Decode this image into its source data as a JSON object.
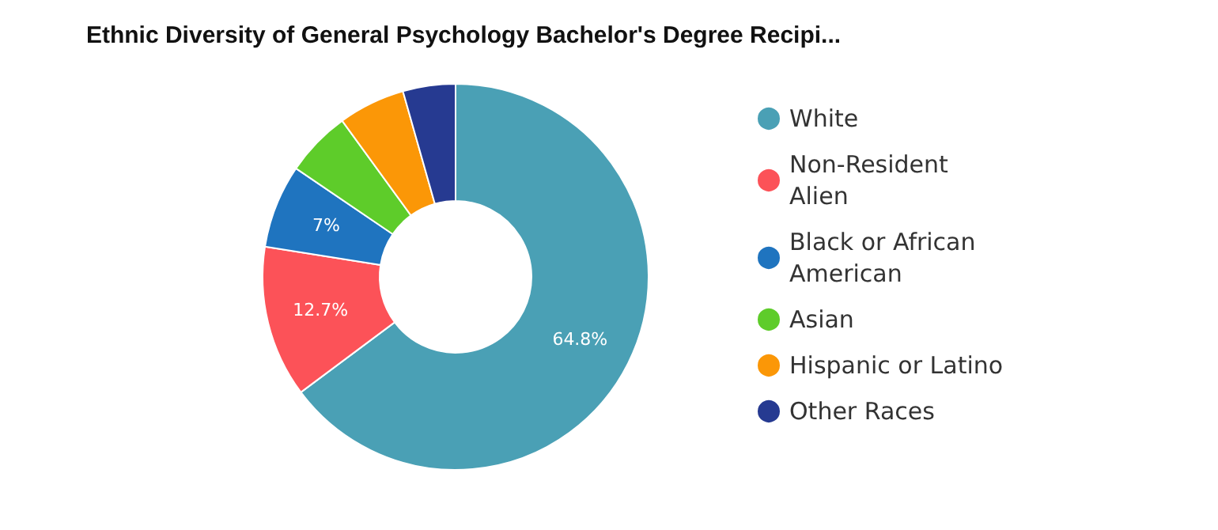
{
  "chart_data": {
    "type": "donut",
    "title": "Ethnic Diversity of General Psychology Bachelor's Degree Recipi...",
    "categories": [
      "White",
      "Non-Resident Alien",
      "Black or African American",
      "Asian",
      "Hispanic or Latino",
      "Other Races"
    ],
    "values": [
      64.8,
      12.7,
      7,
      5.5,
      5.6,
      4.4
    ],
    "colors": [
      "#4aa0b5",
      "#fc5258",
      "#1f74bf",
      "#5ecc2a",
      "#fb9707",
      "#263a91"
    ],
    "value_labels": [
      "64.8%",
      "12.7%",
      "7%",
      null,
      null,
      null
    ],
    "legend": "right"
  }
}
